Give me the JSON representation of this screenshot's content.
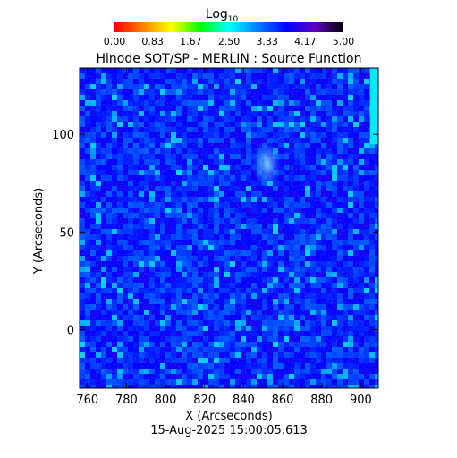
{
  "chart_data": {
    "type": "heatmap",
    "title": "Hinode SOT/SP - MERLIN : Source Function",
    "xlabel": "X (Arcseconds)",
    "ylabel": "Y (Arcseconds)",
    "xlim": [
      756,
      909
    ],
    "ylim": [
      -30,
      134
    ],
    "x_ticks": [
      760,
      780,
      800,
      820,
      840,
      860,
      880,
      900
    ],
    "y_ticks": [
      0,
      50,
      100
    ],
    "timestamp": "15-Aug-2025 15:00:05.613",
    "colorbar": {
      "label_base": "Log",
      "label_sub": "10",
      "range": [
        0,
        5
      ],
      "ticks": [
        "0.00",
        "0.83",
        "1.67",
        "2.50",
        "3.33",
        "4.17",
        "5.00"
      ],
      "colormap": [
        "#ff0000",
        "#ff8000",
        "#ffff00",
        "#00ff00",
        "#00ffff",
        "#0080ff",
        "#0000ff",
        "#6000c0",
        "#000000"
      ]
    },
    "dominant_value_range": [
      3.3,
      3.9
    ],
    "features": [
      {
        "description_value": "bright cluster",
        "x": 852,
        "y": 85,
        "value": 3.1
      },
      {
        "description_value": "green edge patch",
        "x": 907,
        "y": 125,
        "value": 2.6
      }
    ]
  }
}
